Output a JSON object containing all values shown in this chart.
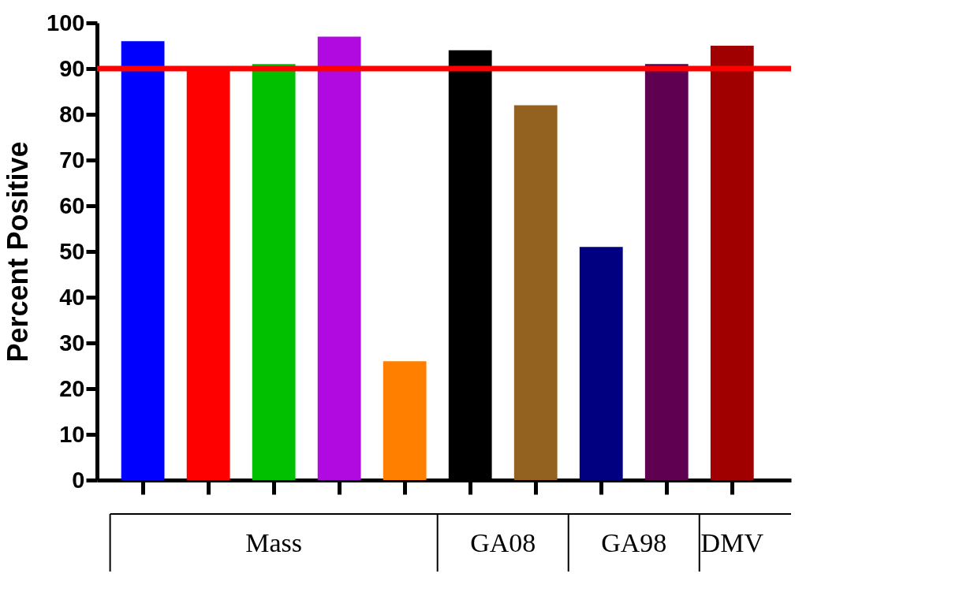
{
  "chart_data": {
    "type": "bar",
    "ylabel": "Percent Positive",
    "categories": [
      null,
      null,
      null,
      null,
      null,
      null,
      null,
      null,
      null,
      null
    ],
    "values": [
      96,
      90,
      91,
      97,
      26,
      94,
      82,
      51,
      91,
      95
    ],
    "colors": [
      "#0000ff",
      "#ff0000",
      "#00c000",
      "#b00ae0",
      "#ff8000",
      "#000000",
      "#936220",
      "#000080",
      "#600050",
      "#a00000"
    ],
    "ylim": [
      0,
      100
    ],
    "yticks": [
      0,
      10,
      20,
      30,
      40,
      50,
      60,
      70,
      80,
      90,
      100
    ],
    "ref_lines": [
      {
        "axis": "y",
        "value": 90,
        "color": "#ff0000"
      }
    ],
    "annotations": [
      "Mass",
      "GA08",
      "GA98",
      "DMV"
    ],
    "grid": false
  }
}
